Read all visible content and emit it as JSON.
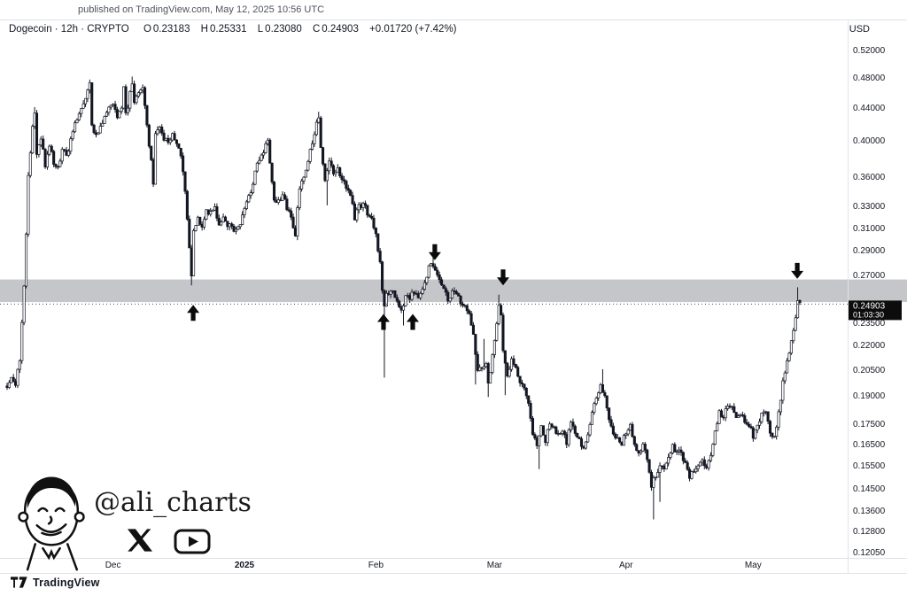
{
  "published_note": "published on TradingView.com, May 12, 2025 10:56 UTC",
  "header": {
    "title_line": "Dogecoin · 12h · CRYPTO",
    "o_label": "O",
    "o_value": "0.23183",
    "h_label": "H",
    "h_value": "0.25331",
    "l_label": "L",
    "l_value": "0.23080",
    "c_label": "C",
    "c_value": "0.24903",
    "change": "+0.01720 (+7.42%)",
    "currency": "USD"
  },
  "price_axis": {
    "ticks": [
      "0.52000",
      "0.48000",
      "0.44000",
      "0.40000",
      "0.36000",
      "0.33000",
      "0.31000",
      "0.29000",
      "0.27000",
      "0.23500",
      "0.22000",
      "0.20500",
      "0.19000",
      "0.17500",
      "0.16500",
      "0.15500",
      "0.14500",
      "0.13600",
      "0.12800",
      "0.12050"
    ],
    "last_price_label": "0.24903",
    "countdown": "01:03:30"
  },
  "time_axis": {
    "labels": [
      {
        "text": "Dec",
        "day": 25
      },
      {
        "text": "2025",
        "day": 56,
        "bold": true
      },
      {
        "text": "Feb",
        "day": 87
      },
      {
        "text": "Mar",
        "day": 115
      },
      {
        "text": "Apr",
        "day": 146
      },
      {
        "text": "May",
        "day": 176
      }
    ]
  },
  "watermark": {
    "handle": "@ali_charts",
    "icons": [
      "ali-avatar-icon",
      "x-logo-icon",
      "youtube-logo-icon"
    ]
  },
  "footer": {
    "brand": "TradingView"
  },
  "colors": {
    "candle": "#131722",
    "zone": "#c5c6c9",
    "badge_bg": "#0c0c0c",
    "badge_text": "#ffffff",
    "axis_text": "#131722",
    "separator": "#e0e3eb",
    "last_price_line": "#2a2e39"
  },
  "chart_data": {
    "type": "candlestick",
    "title": "Dogecoin · 12h · CRYPTO",
    "scale": "log",
    "interval_hours": 12,
    "legend_position": "none",
    "grid": false,
    "ohlc_current": {
      "open": 0.23183,
      "high": 0.25331,
      "low": 0.2308,
      "close": 0.24903,
      "change": 0.0172,
      "change_pct": 7.42
    },
    "last_price": 0.24903,
    "y_ticks": [
      0.52,
      0.48,
      0.44,
      0.4,
      0.36,
      0.33,
      0.31,
      0.29,
      0.27,
      0.235,
      0.22,
      0.205,
      0.19,
      0.175,
      0.165,
      0.155,
      0.145,
      0.136,
      0.128,
      0.1205
    ],
    "ylim": [
      0.118,
      0.535
    ],
    "zone": {
      "top": 0.2675,
      "bottom": 0.2505,
      "meaning": "support-resistance-zone"
    },
    "arrows": [
      {
        "dir": "up",
        "day": 43.9,
        "price": 0.2485
      },
      {
        "dir": "up",
        "day": 88.8,
        "price": 0.242
      },
      {
        "dir": "up",
        "day": 95.7,
        "price": 0.242
      },
      {
        "dir": "down",
        "day": 100.9,
        "price": 0.283
      },
      {
        "dir": "down",
        "day": 117.0,
        "price": 0.263
      },
      {
        "dir": "down",
        "day": 186.4,
        "price": 0.268
      }
    ],
    "price_path": [
      [
        0,
        0.197
      ],
      [
        1,
        0.2
      ],
      [
        2,
        0.198
      ],
      [
        3,
        0.212
      ],
      [
        4,
        0.262
      ],
      [
        5,
        0.36
      ],
      [
        6,
        0.415
      ],
      [
        6.5,
        0.438
      ],
      [
        7,
        0.382
      ],
      [
        8,
        0.405
      ],
      [
        9,
        0.372
      ],
      [
        10,
        0.394
      ],
      [
        11,
        0.376
      ],
      [
        12,
        0.372
      ],
      [
        13,
        0.39
      ],
      [
        14,
        0.385
      ],
      [
        15,
        0.4
      ],
      [
        16,
        0.424
      ],
      [
        17,
        0.434
      ],
      [
        18,
        0.449
      ],
      [
        19,
        0.464
      ],
      [
        19.5,
        0.476
      ],
      [
        20,
        0.421
      ],
      [
        21,
        0.406
      ],
      [
        22,
        0.415
      ],
      [
        23,
        0.434
      ],
      [
        24,
        0.44
      ],
      [
        25,
        0.45
      ],
      [
        26,
        0.43
      ],
      [
        27,
        0.444
      ],
      [
        27.5,
        0.466
      ],
      [
        28,
        0.431
      ],
      [
        29,
        0.458
      ],
      [
        29.5,
        0.477
      ],
      [
        30,
        0.448
      ],
      [
        31,
        0.459
      ],
      [
        32,
        0.47
      ],
      [
        33,
        0.421
      ],
      [
        34,
        0.376
      ],
      [
        34.5,
        0.356
      ],
      [
        35,
        0.408
      ],
      [
        36,
        0.419
      ],
      [
        37,
        0.401
      ],
      [
        38,
        0.399
      ],
      [
        39,
        0.409
      ],
      [
        40,
        0.394
      ],
      [
        41,
        0.384
      ],
      [
        42,
        0.346
      ],
      [
        42.5,
        0.316
      ],
      [
        43,
        0.296
      ],
      [
        43.5,
        0.27
      ],
      [
        44,
        0.308
      ],
      [
        45,
        0.32
      ],
      [
        46,
        0.314
      ],
      [
        47,
        0.329
      ],
      [
        48,
        0.324
      ],
      [
        49,
        0.33
      ],
      [
        50,
        0.316
      ],
      [
        51,
        0.318
      ],
      [
        52,
        0.314
      ],
      [
        53,
        0.31
      ],
      [
        54,
        0.308
      ],
      [
        55,
        0.316
      ],
      [
        56,
        0.33
      ],
      [
        57,
        0.34
      ],
      [
        58,
        0.354
      ],
      [
        59,
        0.378
      ],
      [
        60,
        0.384
      ],
      [
        61,
        0.394
      ],
      [
        61.5,
        0.4
      ],
      [
        62,
        0.374
      ],
      [
        63,
        0.34
      ],
      [
        64,
        0.336
      ],
      [
        65,
        0.34
      ],
      [
        66,
        0.33
      ],
      [
        67,
        0.318
      ],
      [
        68,
        0.306
      ],
      [
        69,
        0.349
      ],
      [
        70,
        0.364
      ],
      [
        71,
        0.379
      ],
      [
        72,
        0.399
      ],
      [
        73,
        0.424
      ],
      [
        73.5,
        0.43
      ],
      [
        74,
        0.39
      ],
      [
        75,
        0.356
      ],
      [
        76,
        0.379
      ],
      [
        77,
        0.361
      ],
      [
        78,
        0.369
      ],
      [
        79,
        0.356
      ],
      [
        80,
        0.35
      ],
      [
        81,
        0.34
      ],
      [
        82,
        0.321
      ],
      [
        83,
        0.33
      ],
      [
        84,
        0.334
      ],
      [
        85,
        0.325
      ],
      [
        86,
        0.32
      ],
      [
        87,
        0.305
      ],
      [
        88,
        0.279
      ],
      [
        88.5,
        0.259
      ],
      [
        89,
        0.246
      ],
      [
        89.5,
        0.259
      ],
      [
        90,
        0.256
      ],
      [
        91,
        0.259
      ],
      [
        92,
        0.25
      ],
      [
        93,
        0.245
      ],
      [
        94,
        0.254
      ],
      [
        95,
        0.252
      ],
      [
        96,
        0.259
      ],
      [
        97,
        0.255
      ],
      [
        98,
        0.261
      ],
      [
        99,
        0.271
      ],
      [
        100,
        0.283
      ],
      [
        101,
        0.277
      ],
      [
        102,
        0.267
      ],
      [
        103,
        0.261
      ],
      [
        104,
        0.252
      ],
      [
        105,
        0.257
      ],
      [
        106,
        0.257
      ],
      [
        107,
        0.248
      ],
      [
        108,
        0.246
      ],
      [
        109,
        0.24
      ],
      [
        110,
        0.228
      ],
      [
        110.5,
        0.216
      ],
      [
        111,
        0.206
      ],
      [
        112,
        0.208
      ],
      [
        113,
        0.21
      ],
      [
        113.5,
        0.198
      ],
      [
        114,
        0.206
      ],
      [
        115,
        0.222
      ],
      [
        116,
        0.247
      ],
      [
        116.5,
        0.24
      ],
      [
        117,
        0.216
      ],
      [
        118,
        0.201
      ],
      [
        119,
        0.213
      ],
      [
        120,
        0.208
      ],
      [
        121,
        0.198
      ],
      [
        122,
        0.196
      ],
      [
        123,
        0.187
      ],
      [
        124,
        0.171
      ],
      [
        125,
        0.164
      ],
      [
        126,
        0.174
      ],
      [
        127,
        0.168
      ],
      [
        128,
        0.176
      ],
      [
        129,
        0.174
      ],
      [
        130,
        0.169
      ],
      [
        131,
        0.172
      ],
      [
        132,
        0.167
      ],
      [
        133,
        0.176
      ],
      [
        134,
        0.171
      ],
      [
        135,
        0.168
      ],
      [
        136,
        0.164
      ],
      [
        137,
        0.169
      ],
      [
        138,
        0.183
      ],
      [
        139,
        0.19
      ],
      [
        140,
        0.196
      ],
      [
        141,
        0.19
      ],
      [
        142,
        0.179
      ],
      [
        143,
        0.171
      ],
      [
        144,
        0.168
      ],
      [
        145,
        0.166
      ],
      [
        146,
        0.171
      ],
      [
        147,
        0.174
      ],
      [
        148,
        0.165
      ],
      [
        149,
        0.161
      ],
      [
        150,
        0.166
      ],
      [
        151,
        0.158
      ],
      [
        152,
        0.147
      ],
      [
        153,
        0.151
      ],
      [
        154,
        0.157
      ],
      [
        155,
        0.154
      ],
      [
        156,
        0.16
      ],
      [
        157,
        0.166
      ],
      [
        158,
        0.161
      ],
      [
        159,
        0.162
      ],
      [
        160,
        0.156
      ],
      [
        161,
        0.151
      ],
      [
        162,
        0.154
      ],
      [
        163,
        0.156
      ],
      [
        164,
        0.158
      ],
      [
        165,
        0.155
      ],
      [
        166,
        0.161
      ],
      [
        167,
        0.172
      ],
      [
        168,
        0.181
      ],
      [
        169,
        0.179
      ],
      [
        170,
        0.186
      ],
      [
        171,
        0.184
      ],
      [
        172,
        0.179
      ],
      [
        173,
        0.182
      ],
      [
        174,
        0.176
      ],
      [
        175,
        0.174
      ],
      [
        176,
        0.17
      ],
      [
        177,
        0.176
      ],
      [
        178,
        0.181
      ],
      [
        179,
        0.181
      ],
      [
        180,
        0.172
      ],
      [
        181,
        0.17
      ],
      [
        182,
        0.181
      ],
      [
        183,
        0.198
      ],
      [
        184,
        0.21
      ],
      [
        185,
        0.226
      ],
      [
        186,
        0.238
      ],
      [
        186.5,
        0.252
      ],
      [
        187,
        0.249
      ]
    ],
    "spikes": [
      [
        6.4,
        0.442
      ],
      [
        19.6,
        0.479
      ],
      [
        29.6,
        0.483
      ],
      [
        34.4,
        0.352
      ],
      [
        43.6,
        0.263
      ],
      [
        61.4,
        0.402
      ],
      [
        68.3,
        0.3
      ],
      [
        73.4,
        0.436
      ],
      [
        75.3,
        0.332
      ],
      [
        89.2,
        0.201
      ],
      [
        93.3,
        0.234
      ],
      [
        100.3,
        0.291
      ],
      [
        110.7,
        0.197
      ],
      [
        112.3,
        0.225
      ],
      [
        113.6,
        0.19
      ],
      [
        116.2,
        0.256
      ],
      [
        117.3,
        0.191
      ],
      [
        125.3,
        0.154
      ],
      [
        140.3,
        0.206
      ],
      [
        152.3,
        0.133
      ],
      [
        154.2,
        0.14
      ],
      [
        186.7,
        0.2615
      ]
    ],
    "month_day_offsets": {
      "Dec": 25,
      "Jan2025": 56,
      "Feb": 87,
      "Mar": 115,
      "Apr": 146,
      "May": 176
    }
  }
}
